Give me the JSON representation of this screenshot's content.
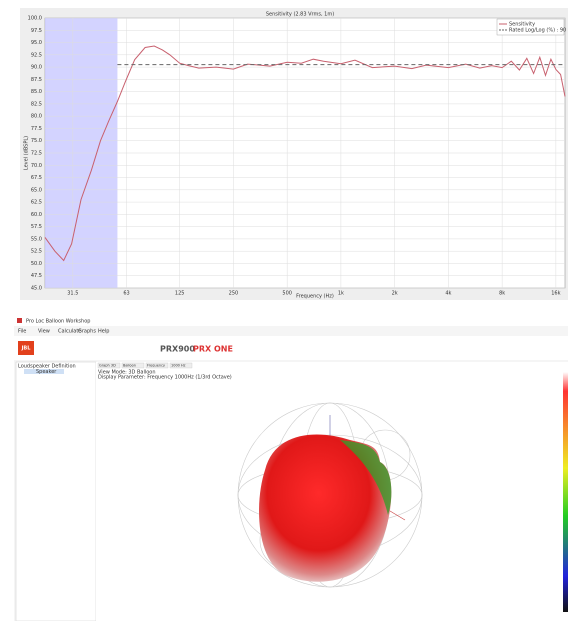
{
  "chart_data": {
    "type": "line",
    "title": "Sensitivity (2.83 Vrms, 1m)",
    "y_label": "Level (dBSPL)",
    "x_label": "Frequency (Hz)",
    "log_x": true,
    "grid": true,
    "xlim": [
      22,
      18000
    ],
    "ylim": [
      45,
      100
    ],
    "highlight_range": [
      22,
      56
    ],
    "xticks": [
      31.5,
      63,
      125,
      250,
      500,
      {
        "value": 1000,
        "label": "1k"
      },
      {
        "value": 2000,
        "label": "2k"
      },
      {
        "value": 4000,
        "label": "4k"
      },
      {
        "value": 8000,
        "label": "8k"
      },
      {
        "value": 16000,
        "label": "16k"
      }
    ],
    "yticks": [
      {
        "value": 45,
        "label": "45.0"
      },
      {
        "value": 47.5,
        "label": "47.5"
      },
      {
        "value": 50,
        "label": "50.0"
      },
      {
        "value": 52.5,
        "label": "52.5"
      },
      {
        "value": 55,
        "label": "55.0"
      },
      {
        "value": 57.5,
        "label": "57.5"
      },
      {
        "value": 60,
        "label": "60.0"
      },
      {
        "value": 62.5,
        "label": "62.5"
      },
      {
        "value": 65,
        "label": "65.0"
      },
      {
        "value": 67.5,
        "label": "67.5"
      },
      {
        "value": 70,
        "label": "70.0"
      },
      {
        "value": 72.5,
        "label": "72.5"
      },
      {
        "value": 75,
        "label": "75.0"
      },
      {
        "value": 77.5,
        "label": "77.5"
      },
      {
        "value": 80,
        "label": "80.0"
      },
      {
        "value": 82.5,
        "label": "82.5"
      },
      {
        "value": 85,
        "label": "85.0"
      },
      {
        "value": 87.5,
        "label": "87.5"
      },
      {
        "value": 90,
        "label": "90.0"
      },
      {
        "value": 92.5,
        "label": "92.5"
      },
      {
        "value": 95,
        "label": "95.0"
      },
      {
        "value": 97.5,
        "label": "97.5"
      },
      {
        "value": 100,
        "label": "100.0"
      }
    ],
    "series": [
      {
        "name": "Sensitivity",
        "color": "#c8606e",
        "dashed": false,
        "x": [
          22,
          25,
          28,
          31,
          35,
          40,
          45,
          50,
          56,
          62,
          70,
          80,
          90,
          100,
          110,
          125,
          140,
          160,
          200,
          250,
          300,
          400,
          500,
          600,
          700,
          800,
          1000,
          1200,
          1500,
          2000,
          2500,
          3000,
          4000,
          5000,
          6000,
          7000,
          8000,
          9000,
          10000,
          11000,
          12000,
          13000,
          14000,
          15000,
          16000,
          17000,
          18000
        ],
        "values": [
          55.3,
          52.5,
          50.6,
          54,
          63,
          69,
          75,
          79,
          83,
          87,
          91.5,
          94,
          94.3,
          93.5,
          92.5,
          90.8,
          90.3,
          89.8,
          90,
          89.6,
          90.6,
          90.2,
          91,
          90.8,
          91.6,
          91.2,
          90.7,
          91.4,
          89.9,
          90.2,
          89.7,
          90.4,
          89.9,
          90.6,
          89.8,
          90.3,
          89.9,
          91.2,
          89.4,
          91.8,
          88.7,
          92,
          88.3,
          91.6,
          89.5,
          88.5,
          84
        ]
      },
      {
        "name": "Rated Log/Log (%) : 90",
        "color": "#666666",
        "dashed": true,
        "x": [
          56,
          18000
        ],
        "values": [
          90.5,
          90.5
        ]
      }
    ]
  },
  "app": {
    "window_title": "Pro Loc Balloon Workshop",
    "menu": [
      "File",
      "View",
      "Calculate",
      "Graphs",
      "Help"
    ],
    "logo": "JBL",
    "brands": [
      "PRX900",
      "PRX ONE"
    ],
    "tree_title": "Loudspeaker Definition",
    "tree_item": "Speaker",
    "toolbar": [
      "Graph 3D",
      "Balloon",
      "Frequency",
      "1000 Hz"
    ],
    "info": [
      "View Mode: 3D Balloon",
      "Display Parameter: Frequency 1000Hz (1/3rd Octave)"
    ]
  }
}
